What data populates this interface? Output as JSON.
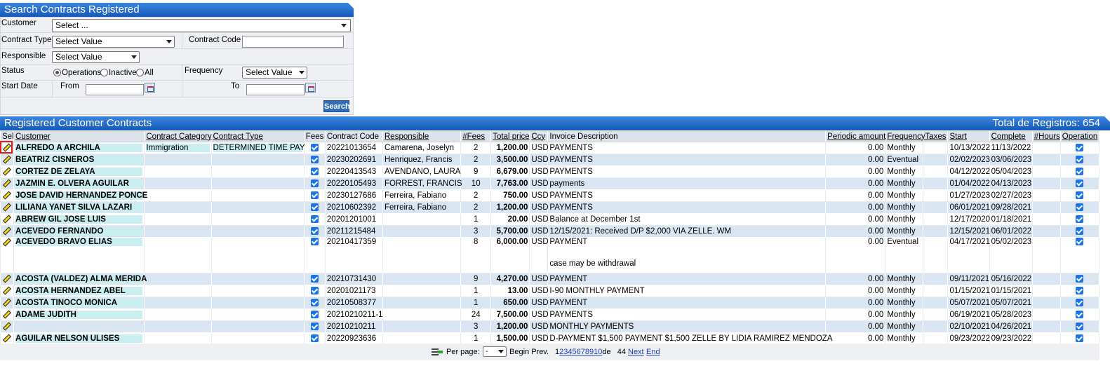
{
  "search": {
    "title": "Search Contracts Registered",
    "customer_label": "Customer",
    "customer_value": "Select ...",
    "contract_type_label": "Contract Type",
    "contract_type_value": "Select Value",
    "contract_code_label": "Contract Code",
    "responsible_label": "Responsible",
    "responsible_value": "Select Value",
    "status_label": "Status",
    "status_options": [
      "Operations",
      "Inactive",
      "All"
    ],
    "status_selected": "Operations",
    "frequency_label": "Frequency",
    "frequency_value": "Select Value",
    "start_date_label": "Start Date",
    "from_label": "From",
    "to_label": "To",
    "search_button": "Search"
  },
  "grid": {
    "title": "Registered Customer Contracts",
    "total": "Total de Registros: 654",
    "columns": [
      "Sel",
      "Customer",
      "Contract Category",
      "Contract Type",
      "Fees",
      "Contract Code",
      "Responsible",
      "#Fees",
      "Total price",
      "Ccy",
      "Invoice Description",
      "Periodic amount",
      "Frequency",
      "Taxes",
      "Start",
      "Complete",
      "#Hours",
      "Operation"
    ],
    "rows": [
      {
        "customer": "ALFREDO A ARCHILA",
        "category": "Immigration",
        "type": "DETERMINED TIME PAY",
        "code": "20221013654",
        "responsible": "Camarena, Joselyn",
        "fees": "2",
        "price": "1,200.00",
        "ccy": "USD",
        "desc": "PAYMENTS",
        "note": "",
        "periodic": "0.00",
        "freq": "Monthly",
        "start": "10/13/2022",
        "complete": "11/13/2022"
      },
      {
        "customer": "BEATRIZ CISNEROS",
        "category": "",
        "type": "",
        "code": "20230202691",
        "responsible": "Henriquez, Francis",
        "fees": "2",
        "price": "3,500.00",
        "ccy": "USD",
        "desc": "PAYMENTS",
        "note": "",
        "periodic": "0.00",
        "freq": "Eventual",
        "start": "02/02/2023",
        "complete": "03/06/2023"
      },
      {
        "customer": "CORTEZ DE ZELAYA",
        "category": "",
        "type": "",
        "code": "20220413543",
        "responsible": "AVENDANO, LAURA",
        "fees": "9",
        "price": "6,679.00",
        "ccy": "USD",
        "desc": "PAYMENTS",
        "note": "",
        "periodic": "0.00",
        "freq": "Monthly",
        "start": "04/12/2022",
        "complete": "05/04/2023"
      },
      {
        "customer": "JAZMIN E. OLVERA AGUILAR",
        "category": "",
        "type": "",
        "code": "20220105493",
        "responsible": "FORREST, FRANCIS",
        "fees": "10",
        "price": "7,763.00",
        "ccy": "USD",
        "desc": "payments",
        "note": "",
        "periodic": "0.00",
        "freq": "Monthly",
        "start": "01/04/2022",
        "complete": "04/13/2023"
      },
      {
        "customer": "JOSE DAVID HERNANDEZ PONCE",
        "category": "",
        "type": "",
        "code": "20230127686",
        "responsible": "Ferreira, Fabiano",
        "fees": "2",
        "price": "750.00",
        "ccy": "USD",
        "desc": "PAYMENTS",
        "note": "",
        "periodic": "0.00",
        "freq": "Monthly",
        "start": "01/27/2023",
        "complete": "02/27/2023"
      },
      {
        "customer": "LILIANA YANET SILVA LAZARI",
        "category": "",
        "type": "",
        "code": "20210602392",
        "responsible": "Ferreira, Fabiano",
        "fees": "2",
        "price": "1,200.00",
        "ccy": "USD",
        "desc": "PAYMENTS",
        "note": "",
        "periodic": "0.00",
        "freq": "Monthly",
        "start": "06/01/2021",
        "complete": "09/28/2021"
      },
      {
        "customer": "ABREW GIL JOSE LUIS",
        "category": "",
        "type": "",
        "code": "20201201001",
        "responsible": "",
        "fees": "1",
        "price": "20.00",
        "ccy": "USD",
        "desc": "Balance at December 1st",
        "note": "",
        "periodic": "0.00",
        "freq": "Monthly",
        "start": "12/17/2020",
        "complete": "01/18/2021"
      },
      {
        "customer": "ACEVEDO FERNANDO",
        "category": "",
        "type": "",
        "code": "20211215484",
        "responsible": "",
        "fees": "3",
        "price": "5,700.00",
        "ccy": "USD",
        "desc": "12/15/2021: Received D/P $2,000 VIA ZELLE. WM",
        "note": "",
        "periodic": "0.00",
        "freq": "Monthly",
        "start": "12/15/2021",
        "complete": "06/01/2022"
      },
      {
        "customer": "ACEVEDO BRAVO ELIAS",
        "category": "",
        "type": "",
        "code": "20210417359",
        "responsible": "",
        "fees": "8",
        "price": "6,000.00",
        "ccy": "USD",
        "desc": "PAYMENT",
        "note": "case may be withdrawal",
        "periodic": "0.00",
        "freq": "Eventual",
        "start": "04/17/2021",
        "complete": "05/02/2023"
      },
      {
        "customer": "ACOSTA (VALDEZ) ALMA MERIDA",
        "category": "",
        "type": "",
        "code": "20210731430",
        "responsible": "",
        "fees": "9",
        "price": "4,270.00",
        "ccy": "USD",
        "desc": "PAYMENT",
        "note": "",
        "periodic": "0.00",
        "freq": "Monthly",
        "start": "09/11/2021",
        "complete": "05/16/2022"
      },
      {
        "customer": "ACOSTA HERNANDEZ ABEL",
        "category": "",
        "type": "",
        "code": "20201021173",
        "responsible": "",
        "fees": "1",
        "price": "13.00",
        "ccy": "USD",
        "desc": "I-90 MONTHLY PAYMENT",
        "note": "",
        "periodic": "0.00",
        "freq": "Monthly",
        "start": "01/15/2021",
        "complete": "01/15/2021"
      },
      {
        "customer": "ACOSTA TINOCO MONICA",
        "category": "",
        "type": "",
        "code": "20210508377",
        "responsible": "",
        "fees": "1",
        "price": "650.00",
        "ccy": "USD",
        "desc": "PAYMENT",
        "note": "",
        "periodic": "0.00",
        "freq": "Monthly",
        "start": "05/07/2021",
        "complete": "05/07/2021"
      },
      {
        "customer": "ADAME JUDITH",
        "category": "",
        "type": "",
        "code": "20210210211-1",
        "responsible": "",
        "fees": "24",
        "price": "7,500.00",
        "ccy": "USD",
        "desc": "PAYMENTS",
        "note": "",
        "periodic": "0.00",
        "freq": "Monthly",
        "start": "06/19/2021",
        "complete": "05/28/2023"
      },
      {
        "customer": "",
        "category": "",
        "type": "",
        "code": "20210210211",
        "responsible": "",
        "fees": "3",
        "price": "1,200.00",
        "ccy": "USD",
        "desc": "MONTHLY PAYMENTS",
        "note": "",
        "periodic": "0.00",
        "freq": "Monthly",
        "start": "02/10/2021",
        "complete": "04/26/2021"
      },
      {
        "customer": "AGUILAR NELSON ULISES",
        "category": "",
        "type": "",
        "code": "20220923636",
        "responsible": "",
        "fees": "1",
        "price": "1,500.00",
        "ccy": "USD",
        "desc": "D-PAYMENT $1,500 PAYMENT $1,500 ZELLE BY LIDIA RAMIREZ MENDOZA",
        "note": "",
        "periodic": "0.00",
        "freq": "Monthly",
        "start": "09/23/2022",
        "complete": "09/23/2022"
      }
    ]
  },
  "pager": {
    "per_page_label": "Per page:",
    "per_page_value": "-",
    "begin_prev": "Begin Prev.",
    "current_page": "1",
    "pages": [
      "2",
      "3",
      "4",
      "5",
      "6",
      "7",
      "8",
      "9",
      "10"
    ],
    "of_text": "de",
    "total_pages": "44",
    "next": "Next",
    "end": "End"
  }
}
